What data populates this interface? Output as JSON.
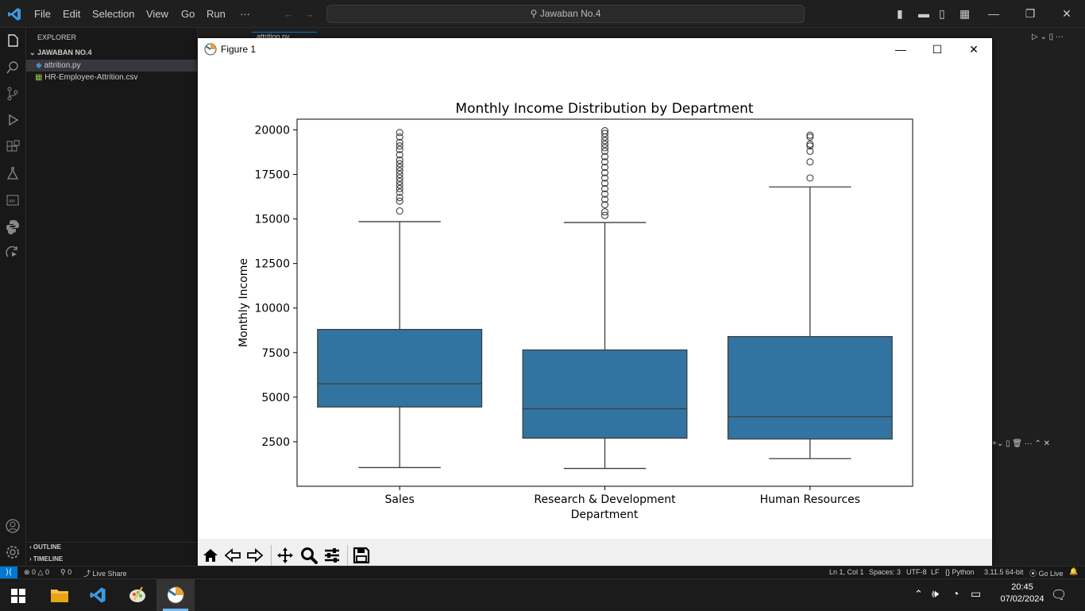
{
  "titlebar": {
    "menus": [
      "File",
      "Edit",
      "Selection",
      "View",
      "Go",
      "Run",
      "···"
    ],
    "search": "Jawaban No.4"
  },
  "sidebar": {
    "header": "EXPLORER",
    "folder": "JAWABAN NO.4",
    "files": [
      "attrition.py",
      "HR-Employee-Attrition.csv"
    ],
    "outline": "OUTLINE",
    "timeline": "TIMELINE"
  },
  "editor": {
    "tab": "attrition.py"
  },
  "statusbar": {
    "left": [
      "⊗ 0 △ 0",
      "⚲ 0",
      "Live Share"
    ],
    "right": [
      "Ln 1, Col 1",
      "Spaces: 3",
      "UTF-8",
      "LF",
      "Python",
      "3.11.5 64-bit",
      "Go Live"
    ]
  },
  "figure": {
    "title": "Figure 1",
    "toolbar": [
      "home-icon",
      "back-icon",
      "forward-icon",
      "pan-icon",
      "zoom-icon",
      "configure-icon",
      "save-icon"
    ]
  },
  "taskbar": {
    "time": "20:45",
    "date": "07/02/2024"
  },
  "colors": {
    "box": "#3274a1",
    "accent": "#007acc"
  },
  "chart_data": {
    "type": "box",
    "title": "Monthly Income Distribution by Department",
    "xlabel": "Department",
    "ylabel": "Monthly Income",
    "categories": [
      "Sales",
      "Research & Development",
      "Human Resources"
    ],
    "yticks": [
      2500,
      5000,
      7500,
      10000,
      12500,
      15000,
      17500,
      20000
    ],
    "ylim": [
      0,
      20600
    ],
    "grid": false,
    "boxes": [
      {
        "category": "Sales",
        "whisker_low": 1050,
        "q1": 4450,
        "median": 5750,
        "q3": 8800,
        "whisker_high": 14850,
        "outliers": [
          15450,
          16000,
          16200,
          16500,
          16700,
          16900,
          17100,
          17300,
          17500,
          17700,
          17900,
          18100,
          18300,
          18600,
          18900,
          19100,
          19300,
          19600,
          19850
        ]
      },
      {
        "category": "Research & Development",
        "whisker_low": 1000,
        "q1": 2700,
        "median": 4350,
        "q3": 7650,
        "whisker_high": 14800,
        "outliers": [
          15200,
          15400,
          15800,
          16100,
          16400,
          16700,
          17000,
          17300,
          17600,
          17900,
          18200,
          18500,
          18800,
          19000,
          19200,
          19400,
          19600,
          19800,
          19950
        ]
      },
      {
        "category": "Human Resources",
        "whisker_low": 1550,
        "q1": 2650,
        "median": 3900,
        "q3": 8400,
        "whisker_high": 16800,
        "outliers": [
          17300,
          18200,
          18800,
          19100,
          19200,
          19600,
          19700
        ]
      }
    ]
  }
}
